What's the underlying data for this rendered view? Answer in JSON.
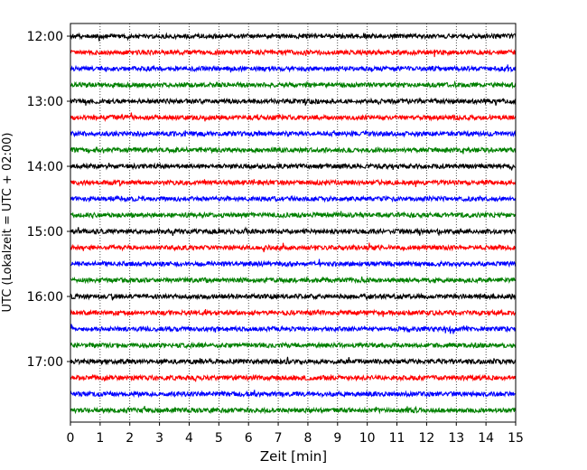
{
  "chart_data": {
    "type": "line",
    "title": "",
    "xlabel": "Zeit  [min]",
    "ylabel": "UTC (Lokalzeit = UTC + 02:00)",
    "xlim": [
      0,
      15
    ],
    "x_ticks": [
      0,
      1,
      2,
      3,
      4,
      5,
      6,
      7,
      8,
      9,
      10,
      11,
      12,
      13,
      14,
      15
    ],
    "y_tick_labels": [
      "12:00",
      "13:00",
      "14:00",
      "15:00",
      "16:00",
      "17:00"
    ],
    "grid": {
      "vertical": true,
      "style": "dotted"
    },
    "trace_colors": [
      "#000000",
      "#ff0000",
      "#0000ff",
      "#008000"
    ],
    "series": [
      {
        "start": "12:00",
        "color": "#000000"
      },
      {
        "start": "12:15",
        "color": "#ff0000"
      },
      {
        "start": "12:30",
        "color": "#0000ff"
      },
      {
        "start": "12:45",
        "color": "#008000"
      },
      {
        "start": "13:00",
        "color": "#000000"
      },
      {
        "start": "13:15",
        "color": "#ff0000"
      },
      {
        "start": "13:30",
        "color": "#0000ff"
      },
      {
        "start": "13:45",
        "color": "#008000"
      },
      {
        "start": "14:00",
        "color": "#000000"
      },
      {
        "start": "14:15",
        "color": "#ff0000"
      },
      {
        "start": "14:30",
        "color": "#0000ff"
      },
      {
        "start": "14:45",
        "color": "#008000"
      },
      {
        "start": "15:00",
        "color": "#000000"
      },
      {
        "start": "15:15",
        "color": "#ff0000"
      },
      {
        "start": "15:30",
        "color": "#0000ff"
      },
      {
        "start": "15:45",
        "color": "#008000"
      },
      {
        "start": "16:00",
        "color": "#000000"
      },
      {
        "start": "16:15",
        "color": "#ff0000"
      },
      {
        "start": "16:30",
        "color": "#0000ff"
      },
      {
        "start": "16:45",
        "color": "#008000"
      },
      {
        "start": "17:00",
        "color": "#000000"
      },
      {
        "start": "17:15",
        "color": "#ff0000"
      },
      {
        "start": "17:30",
        "color": "#0000ff"
      },
      {
        "start": "17:45",
        "color": "#008000"
      }
    ]
  }
}
